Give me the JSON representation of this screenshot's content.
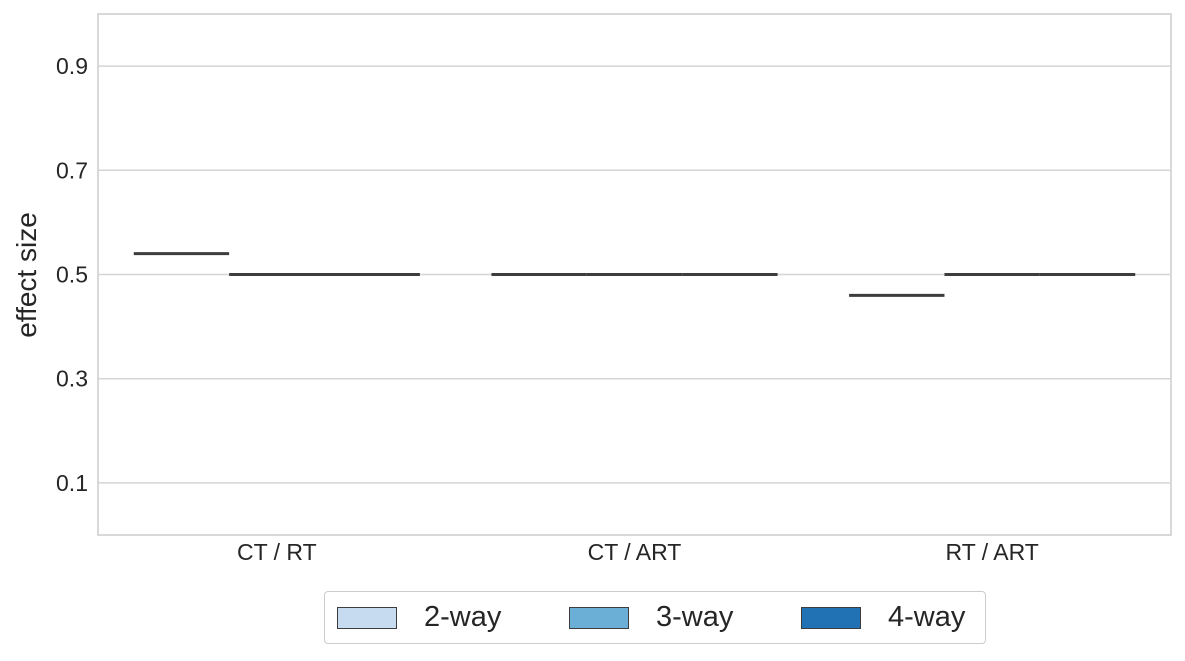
{
  "chart_data": {
    "type": "box",
    "ylabel": "effect size",
    "xlabel": "",
    "ylim": [
      0.0,
      1.0
    ],
    "yticks": [
      0.1,
      0.3,
      0.5,
      0.7,
      0.9
    ],
    "ytick_labels": [
      "0.1",
      "0.3",
      "0.5",
      "0.7",
      "0.9"
    ],
    "categories": [
      "CT / RT",
      "CT / ART",
      "RT / ART"
    ],
    "grid": true,
    "legend_placement": "bottom-center",
    "series": [
      {
        "name": "2-way",
        "color": "#c6dbef",
        "values": [
          0.54,
          0.5,
          0.46
        ]
      },
      {
        "name": "3-way",
        "color": "#6baed6",
        "values": [
          0.5,
          0.5,
          0.5
        ]
      },
      {
        "name": "4-way",
        "color": "#2171b5",
        "values": [
          0.5,
          0.5,
          0.5
        ]
      }
    ]
  }
}
